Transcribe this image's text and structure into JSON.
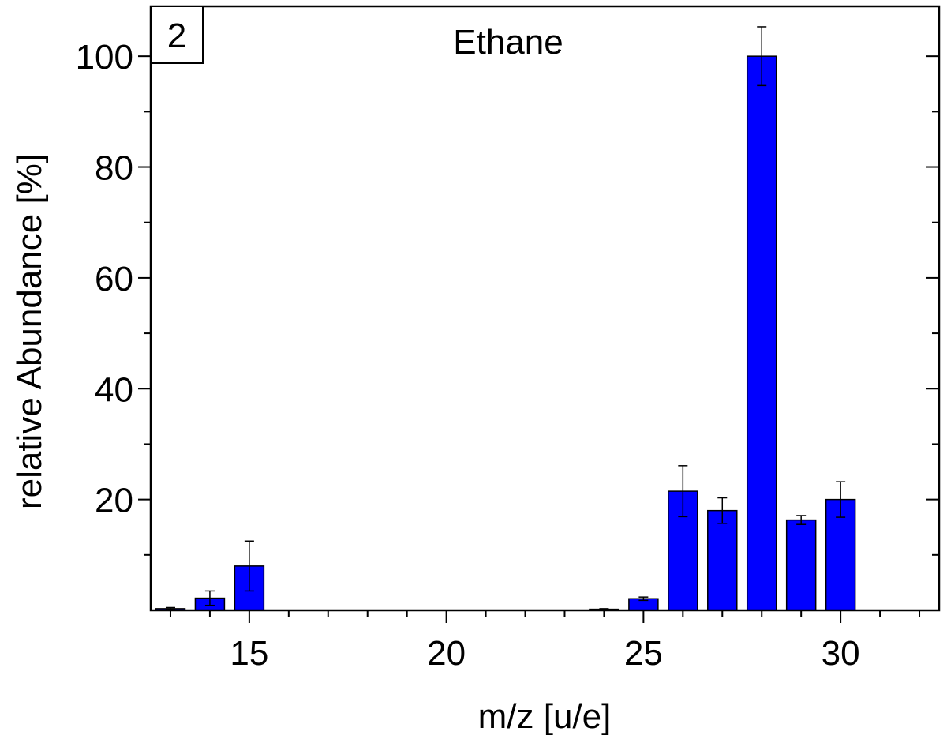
{
  "chart_data": {
    "type": "bar",
    "title": "Ethane",
    "panel_label": "2",
    "xlabel": "m/z [u/e]",
    "ylabel": "relative Abundance [%]",
    "xlim": [
      12.5,
      32.5
    ],
    "ylim": [
      0,
      109
    ],
    "x_ticks": [
      15,
      20,
      25,
      30
    ],
    "y_ticks": [
      20,
      40,
      60,
      80,
      100
    ],
    "x_minor_step": 1,
    "y_minor_step": 10,
    "bar_color": "#0000ff",
    "x": [
      13,
      14,
      15,
      24,
      25,
      26,
      27,
      28,
      29,
      30
    ],
    "values": [
      0.3,
      2.2,
      8.0,
      0.2,
      2.1,
      21.5,
      18.0,
      100.0,
      16.3,
      20.0
    ],
    "errors": [
      0.2,
      1.3,
      4.5,
      0.1,
      0.3,
      4.6,
      2.3,
      5.3,
      0.8,
      3.2
    ]
  }
}
